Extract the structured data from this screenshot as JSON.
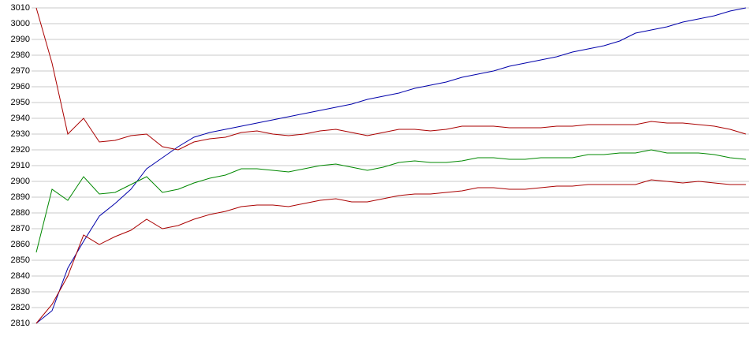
{
  "chart_data": {
    "type": "line",
    "categories": [
      null,
      null,
      null,
      null,
      null,
      null,
      null,
      null,
      null,
      null,
      null,
      null,
      null,
      null,
      null,
      null,
      null,
      null,
      null,
      null,
      null,
      null,
      null,
      null,
      null,
      null,
      null,
      null,
      null,
      null,
      null,
      null,
      null,
      null,
      null,
      null,
      null,
      null,
      null,
      null,
      null,
      null,
      null,
      null,
      null,
      null
    ],
    "series": [
      {
        "color": "#0000aa",
        "values": [
          2810,
          2818,
          2845,
          2862,
          2878,
          2886,
          2895,
          2908,
          2915,
          2922,
          2928,
          2931,
          2933,
          2935,
          2937,
          2939,
          2941,
          2943,
          2945,
          2947,
          2949,
          2952,
          2954,
          2956,
          2959,
          2961,
          2963,
          2966,
          2968,
          2970,
          2973,
          2975,
          2977,
          2979,
          2982,
          2984,
          2986,
          2989,
          2994,
          2996,
          2998,
          3001,
          3003,
          3005,
          3008,
          3010
        ]
      },
      {
        "color": "#aa0000",
        "values": [
          3010,
          2975,
          2930,
          2940,
          2925,
          2926,
          2929,
          2930,
          2922,
          2920,
          2925,
          2927,
          2928,
          2931,
          2932,
          2930,
          2929,
          2930,
          2932,
          2933,
          2931,
          2929,
          2931,
          2933,
          2933,
          2932,
          2933,
          2935,
          2935,
          2935,
          2934,
          2934,
          2934,
          2935,
          2935,
          2936,
          2936,
          2936,
          2936,
          2938,
          2937,
          2937,
          2936,
          2935,
          2933,
          2930
        ]
      },
      {
        "color": "#008800",
        "values": [
          2855,
          2895,
          2888,
          2903,
          2892,
          2893,
          2898,
          2903,
          2893,
          2895,
          2899,
          2902,
          2904,
          2908,
          2908,
          2907,
          2906,
          2908,
          2910,
          2911,
          2909,
          2907,
          2909,
          2912,
          2913,
          2912,
          2912,
          2913,
          2915,
          2915,
          2914,
          2914,
          2915,
          2915,
          2915,
          2917,
          2917,
          2918,
          2918,
          2920,
          2918,
          2918,
          2918,
          2917,
          2915,
          2914
        ]
      },
      {
        "color": "#aa0000",
        "values": [
          2810,
          2822,
          2840,
          2866,
          2860,
          2865,
          2869,
          2876,
          2870,
          2872,
          2876,
          2879,
          2881,
          2884,
          2885,
          2885,
          2884,
          2886,
          2888,
          2889,
          2887,
          2887,
          2889,
          2891,
          2892,
          2892,
          2893,
          2894,
          2896,
          2896,
          2895,
          2895,
          2896,
          2897,
          2897,
          2898,
          2898,
          2898,
          2898,
          2901,
          2900,
          2899,
          2900,
          2899,
          2898,
          2898
        ]
      }
    ],
    "ylim": [
      2810,
      3010
    ],
    "yticks": [
      2810,
      2820,
      2830,
      2840,
      2850,
      2860,
      2870,
      2880,
      2890,
      2900,
      2910,
      2920,
      2930,
      2940,
      2950,
      2960,
      2970,
      2980,
      2990,
      3000,
      3010
    ],
    "grid": true
  }
}
